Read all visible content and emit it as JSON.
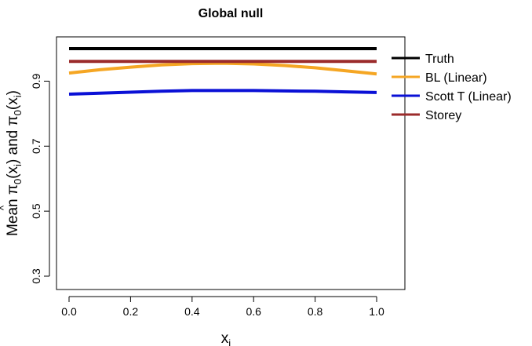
{
  "chart_data": {
    "type": "line",
    "title": "Global null",
    "xlabel": "x",
    "xlabel_sub": "i",
    "ylabel_parts": {
      "prefix": "Mean ",
      "pi": "π",
      "hat": "^",
      "zero": "0",
      "open": "(x",
      "i": "i",
      "close": ")",
      "and": " and ",
      "pi2": "π",
      "zero2": "0",
      "open2": "(x",
      "i2": "i",
      "close2": ")"
    },
    "xlim": [
      0,
      1
    ],
    "ylim": [
      0.3,
      1.0
    ],
    "x_ticks": [
      0.0,
      0.2,
      0.4,
      0.6,
      0.8,
      1.0
    ],
    "x_tick_labels": [
      "0.0",
      "0.2",
      "0.4",
      "0.6",
      "0.8",
      "1.0"
    ],
    "y_ticks": [
      0.3,
      0.5,
      0.7,
      0.9
    ],
    "y_tick_labels": [
      "0.3",
      "0.5",
      "0.7",
      "0.9"
    ],
    "grid": false,
    "legend_position": "outside-right",
    "x": [
      0.0,
      0.1,
      0.2,
      0.3,
      0.4,
      0.5,
      0.6,
      0.7,
      0.8,
      0.9,
      1.0
    ],
    "series": [
      {
        "name": "Truth",
        "color": "#000000",
        "values": [
          1.0,
          1.0,
          1.0,
          1.0,
          1.0,
          1.0,
          1.0,
          1.0,
          1.0,
          1.0,
          1.0
        ]
      },
      {
        "name": "BL (Linear)",
        "color": "#F5A623",
        "values": [
          0.925,
          0.935,
          0.943,
          0.95,
          0.954,
          0.955,
          0.953,
          0.948,
          0.941,
          0.932,
          0.922
        ]
      },
      {
        "name": "Scott T (Linear)",
        "color": "#0A10D6",
        "values": [
          0.86,
          0.863,
          0.866,
          0.869,
          0.871,
          0.871,
          0.871,
          0.87,
          0.869,
          0.867,
          0.865
        ]
      },
      {
        "name": "Storey",
        "color": "#9B2B2B",
        "values": [
          0.961,
          0.961,
          0.961,
          0.961,
          0.961,
          0.961,
          0.961,
          0.961,
          0.961,
          0.961,
          0.961
        ]
      }
    ]
  }
}
